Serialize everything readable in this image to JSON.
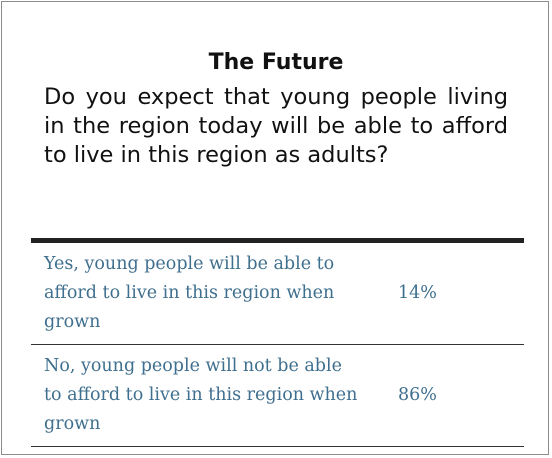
{
  "chart_data": {
    "type": "table",
    "title": "The Future",
    "subtitle": "Do you expect that young people living in the region today will be able to afford to live in this region as adults?",
    "categories": [
      "Yes, young people will be able to afford to live in this region when grown",
      "No, young people will not be able to afford to live in this region when grown"
    ],
    "values": [
      "14%",
      "86%"
    ],
    "colors": {
      "text": "#111111",
      "row_text": "#3f6f8e",
      "rule": "#222222",
      "border": "#8c8c8c"
    }
  }
}
